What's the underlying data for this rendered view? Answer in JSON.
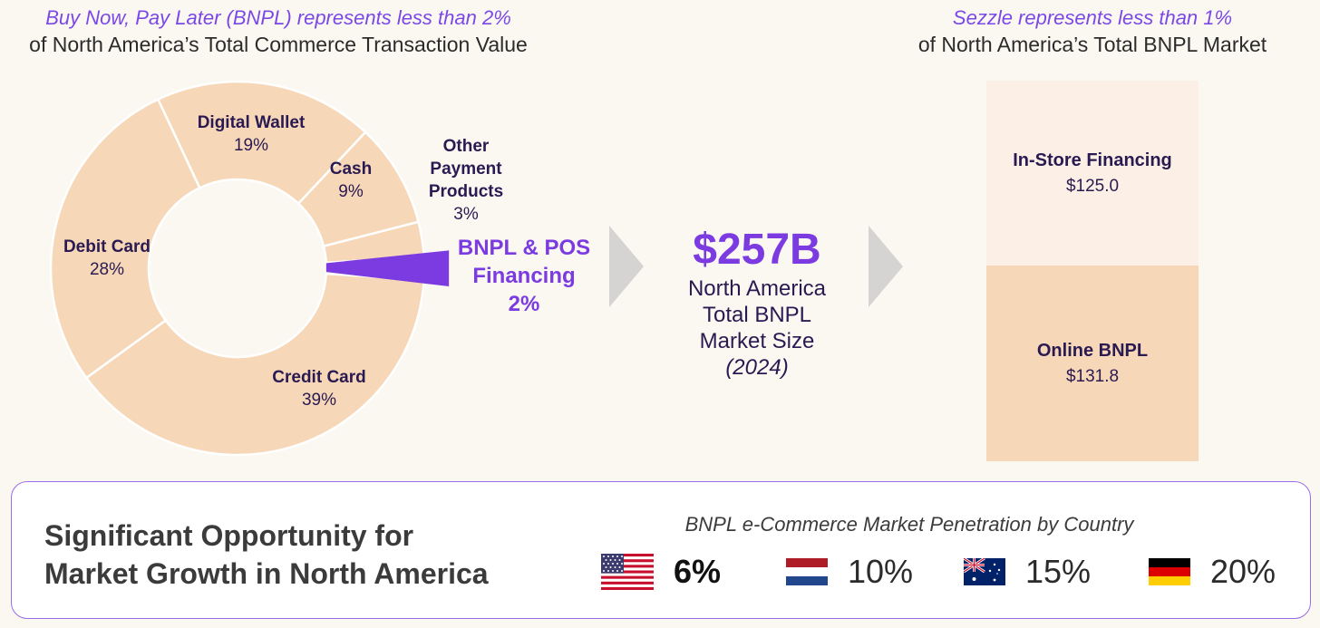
{
  "header_left": {
    "italic": "Buy Now, Pay Later (BNPL) represents less than 2%",
    "normal": "of North America’s Total Commerce Transaction Value"
  },
  "header_right": {
    "italic": "Sezzle represents less than 1%",
    "normal": "of North America’s Total BNPL Market"
  },
  "colors": {
    "peach": "#f6d7b7",
    "light_peach": "#fcf0e6",
    "purple": "#7b3be0",
    "arrow_gray": "#d6d4d2",
    "background": "#fbf8f1"
  },
  "chart_data": [
    {
      "type": "pie",
      "style": "donut",
      "slices": [
        {
          "name": "Credit Card",
          "label": "Credit Card",
          "value": 39,
          "value_label": "39%"
        },
        {
          "name": "Debit Card",
          "label": "Debit Card",
          "value": 28,
          "value_label": "28%"
        },
        {
          "name": "Digital Wallet",
          "label": "Digital Wallet",
          "value": 19,
          "value_label": "19%"
        },
        {
          "name": "Cash",
          "label": "Cash",
          "value": 9,
          "value_label": "9%"
        },
        {
          "name": "Other Payment Products",
          "label": "Other Payment Products",
          "value": 3,
          "value_label": "3%"
        },
        {
          "name": "BNPL & POS Financing",
          "label": "BNPL & POS Financing",
          "value": 2,
          "value_label": "2%",
          "highlight": true
        }
      ]
    },
    {
      "type": "bar",
      "stacked": true,
      "categories": [
        "North America Total BNPL Market"
      ],
      "series": [
        {
          "name": "In-Store Financing",
          "values": [
            125.0
          ],
          "value_label": "$125.0",
          "color": "#fcf0e6"
        },
        {
          "name": "Online BNPL",
          "values": [
            131.8
          ],
          "value_label": "$131.8",
          "color": "#f6d7b7"
        }
      ]
    },
    {
      "type": "table",
      "title": "BNPL e-Commerce Market Penetration by Country",
      "rows": [
        {
          "flag": "us-flag",
          "value": 6,
          "value_label": "6%"
        },
        {
          "flag": "netherlands-flag",
          "value": 10,
          "value_label": "10%"
        },
        {
          "flag": "australia-flag",
          "value": 15,
          "value_label": "15%"
        },
        {
          "flag": "germany-flag",
          "value": 20,
          "value_label": "20%"
        }
      ]
    }
  ],
  "labels": {
    "digital_wallet": {
      "name": "Digital Wallet",
      "value": "19%"
    },
    "cash": {
      "name": "Cash",
      "value": "9%"
    },
    "other": {
      "name_line1": "Other",
      "name_line2": "Payment",
      "name_line3": "Products",
      "value": "3%"
    },
    "debit": {
      "name": "Debit Card",
      "value": "28%"
    },
    "credit": {
      "name": "Credit Card",
      "value": "39%"
    },
    "bnpl": {
      "line1": "BNPL & POS",
      "line2": "Financing",
      "value": "2%"
    }
  },
  "market": {
    "big": "$257B",
    "line1": "North America",
    "line2": "Total BNPL",
    "line3": "Market Size",
    "year": "(2024)"
  },
  "stack": {
    "in_store": {
      "name": "In-Store Financing",
      "value": "$125.0"
    },
    "online": {
      "name": "Online BNPL",
      "value": "$131.8"
    }
  },
  "banner": {
    "title_line1": "Significant Opportunity for",
    "title_line2": "Market Growth in North America",
    "penetration_title": "BNPL e-Commerce Market Penetration by Country",
    "us": "6%",
    "nl": "10%",
    "au": "15%",
    "de": "20%"
  }
}
